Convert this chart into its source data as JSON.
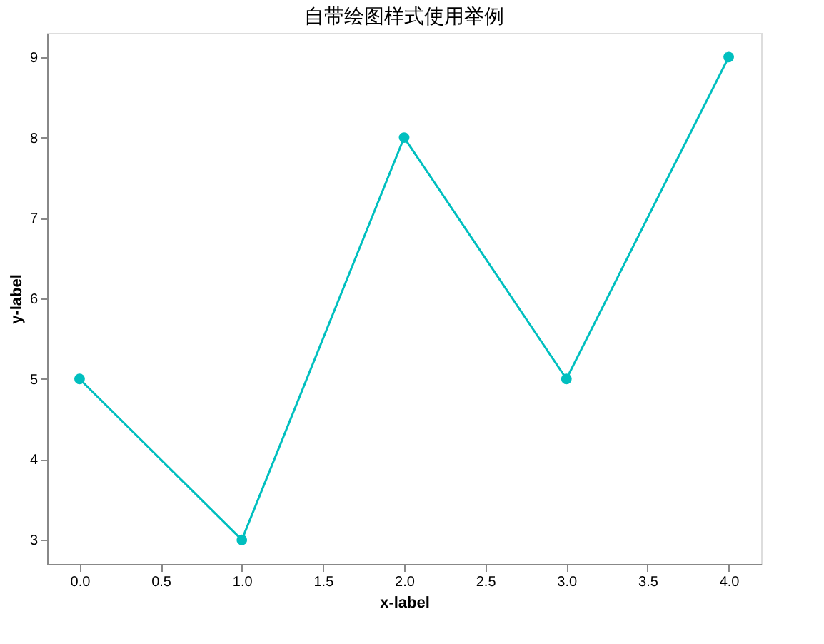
{
  "chart_data": {
    "type": "line",
    "title": "自带绘图样式使用举例",
    "xlabel": "x-label",
    "ylabel": "y-label",
    "x": [
      0,
      1,
      2,
      3,
      4
    ],
    "series": [
      {
        "color": "#00bfbf",
        "values": [
          5,
          3,
          8,
          5,
          9
        ]
      }
    ],
    "xlim": [
      -0.2,
      4.2
    ],
    "xticks": [
      {
        "value": 0,
        "label": "0.0"
      },
      {
        "value": 0.5,
        "label": "0.5"
      },
      {
        "value": 1,
        "label": "1.0"
      },
      {
        "value": 1.5,
        "label": "1.5"
      },
      {
        "value": 2,
        "label": "2.0"
      },
      {
        "value": 2.5,
        "label": "2.5"
      },
      {
        "value": 3,
        "label": "3.0"
      },
      {
        "value": 3.5,
        "label": "3.5"
      },
      {
        "value": 4,
        "label": "4.0"
      }
    ],
    "ylim": [
      2.7,
      9.3
    ],
    "yticks": [
      3,
      4,
      5,
      6,
      7,
      8,
      9
    ],
    "marker": "circle",
    "line_style": "solid",
    "grid": false
  }
}
